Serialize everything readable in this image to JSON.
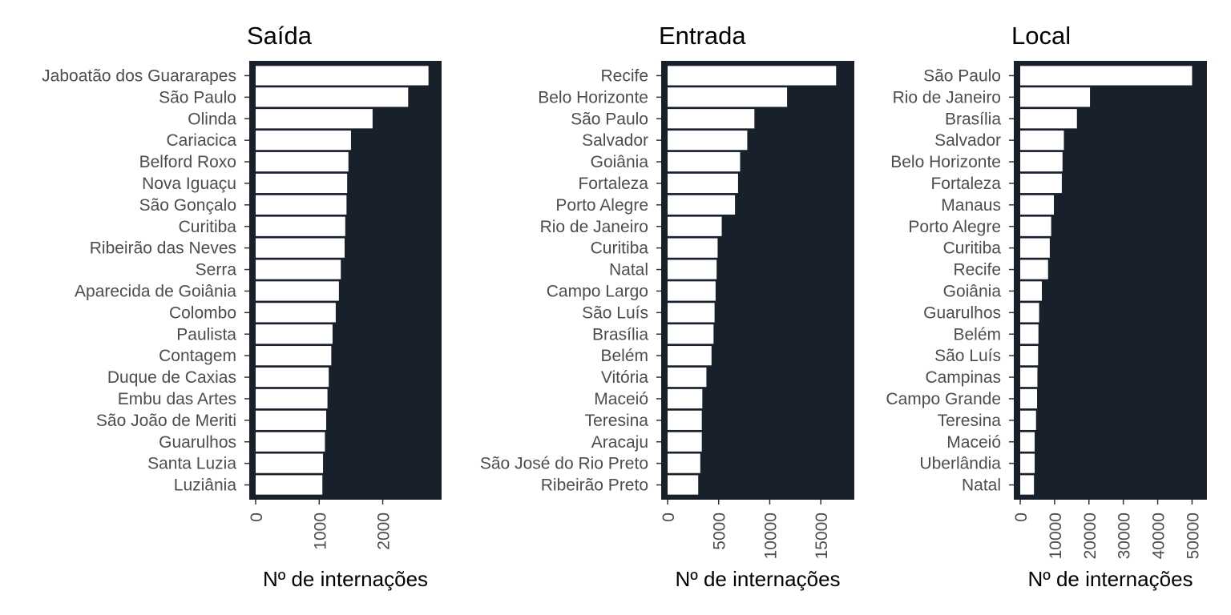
{
  "chart_data": [
    {
      "type": "bar",
      "orientation": "horizontal",
      "title": "Saída",
      "xlabel": "Nº de internações",
      "ylabel": "",
      "xlim": [
        0,
        2800
      ],
      "xticks": [
        "0",
        "1000",
        "2000"
      ],
      "xtick_values": [
        0,
        1000,
        2000
      ],
      "grid": false,
      "colors": {
        "panel": "#18212b",
        "bar": "#ffffff"
      },
      "categories": [
        "Jaboatão dos Guararapes",
        "São Paulo",
        "Olinda",
        "Cariacica",
        "Belford Roxo",
        "Nova Iguaçu",
        "São Gonçalo",
        "Curitiba",
        "Ribeirão das Neves",
        "Serra",
        "Aparecida de Goiânia",
        "Colombo",
        "Paulista",
        "Contagem",
        "Duque de Caxias",
        "Embu das Artes",
        "São João de Meriti",
        "Guarulhos",
        "Santa Luzia",
        "Luziânia"
      ],
      "values": [
        2720,
        2400,
        1840,
        1500,
        1460,
        1440,
        1430,
        1410,
        1400,
        1340,
        1310,
        1260,
        1210,
        1190,
        1150,
        1130,
        1110,
        1090,
        1060,
        1050
      ]
    },
    {
      "type": "bar",
      "orientation": "horizontal",
      "title": "Entrada",
      "xlabel": "Nº de internações",
      "ylabel": "",
      "xlim": [
        0,
        17500
      ],
      "xticks": [
        "0",
        "5000",
        "10000",
        "15000"
      ],
      "xtick_values": [
        0,
        5000,
        10000,
        15000
      ],
      "grid": false,
      "colors": {
        "panel": "#18212b",
        "bar": "#ffffff"
      },
      "categories": [
        "Recife",
        "Belo Horizonte",
        "São Paulo",
        "Salvador",
        "Goiânia",
        "Fortaleza",
        "Porto Alegre",
        "Rio de Janeiro",
        "Curitiba",
        "Natal",
        "Campo Largo",
        "São Luís",
        "Brasília",
        "Belém",
        "Vitória",
        "Maceió",
        "Teresina",
        "Aracaju",
        "São José do Rio Preto",
        "Ribeirão Preto"
      ],
      "values": [
        16500,
        11700,
        8500,
        7800,
        7100,
        6900,
        6600,
        5300,
        4900,
        4800,
        4700,
        4600,
        4500,
        4300,
        3800,
        3400,
        3350,
        3350,
        3200,
        3000
      ]
    },
    {
      "type": "bar",
      "orientation": "horizontal",
      "title": "Local",
      "xlabel": "Nº de internações",
      "ylabel": "",
      "xlim": [
        0,
        52000
      ],
      "xticks": [
        "0",
        "10000",
        "20000",
        "30000",
        "40000",
        "50000"
      ],
      "xtick_values": [
        0,
        10000,
        20000,
        30000,
        40000,
        50000
      ],
      "grid": false,
      "colors": {
        "panel": "#18212b",
        "bar": "#ffffff"
      },
      "categories": [
        "São Paulo",
        "Rio de Janeiro",
        "Brasília",
        "Salvador",
        "Belo Horizonte",
        "Fortaleza",
        "Manaus",
        "Porto Alegre",
        "Curitiba",
        "Recife",
        "Goiânia",
        "Guarulhos",
        "Belém",
        "São Luís",
        "Campinas",
        "Campo Grande",
        "Teresina",
        "Maceió",
        "Uberlândia",
        "Natal"
      ],
      "values": [
        50000,
        20300,
        16500,
        12700,
        12300,
        12100,
        9800,
        9000,
        8600,
        8100,
        6300,
        5500,
        5300,
        5200,
        5000,
        4900,
        4600,
        4200,
        4200,
        4000
      ]
    }
  ]
}
